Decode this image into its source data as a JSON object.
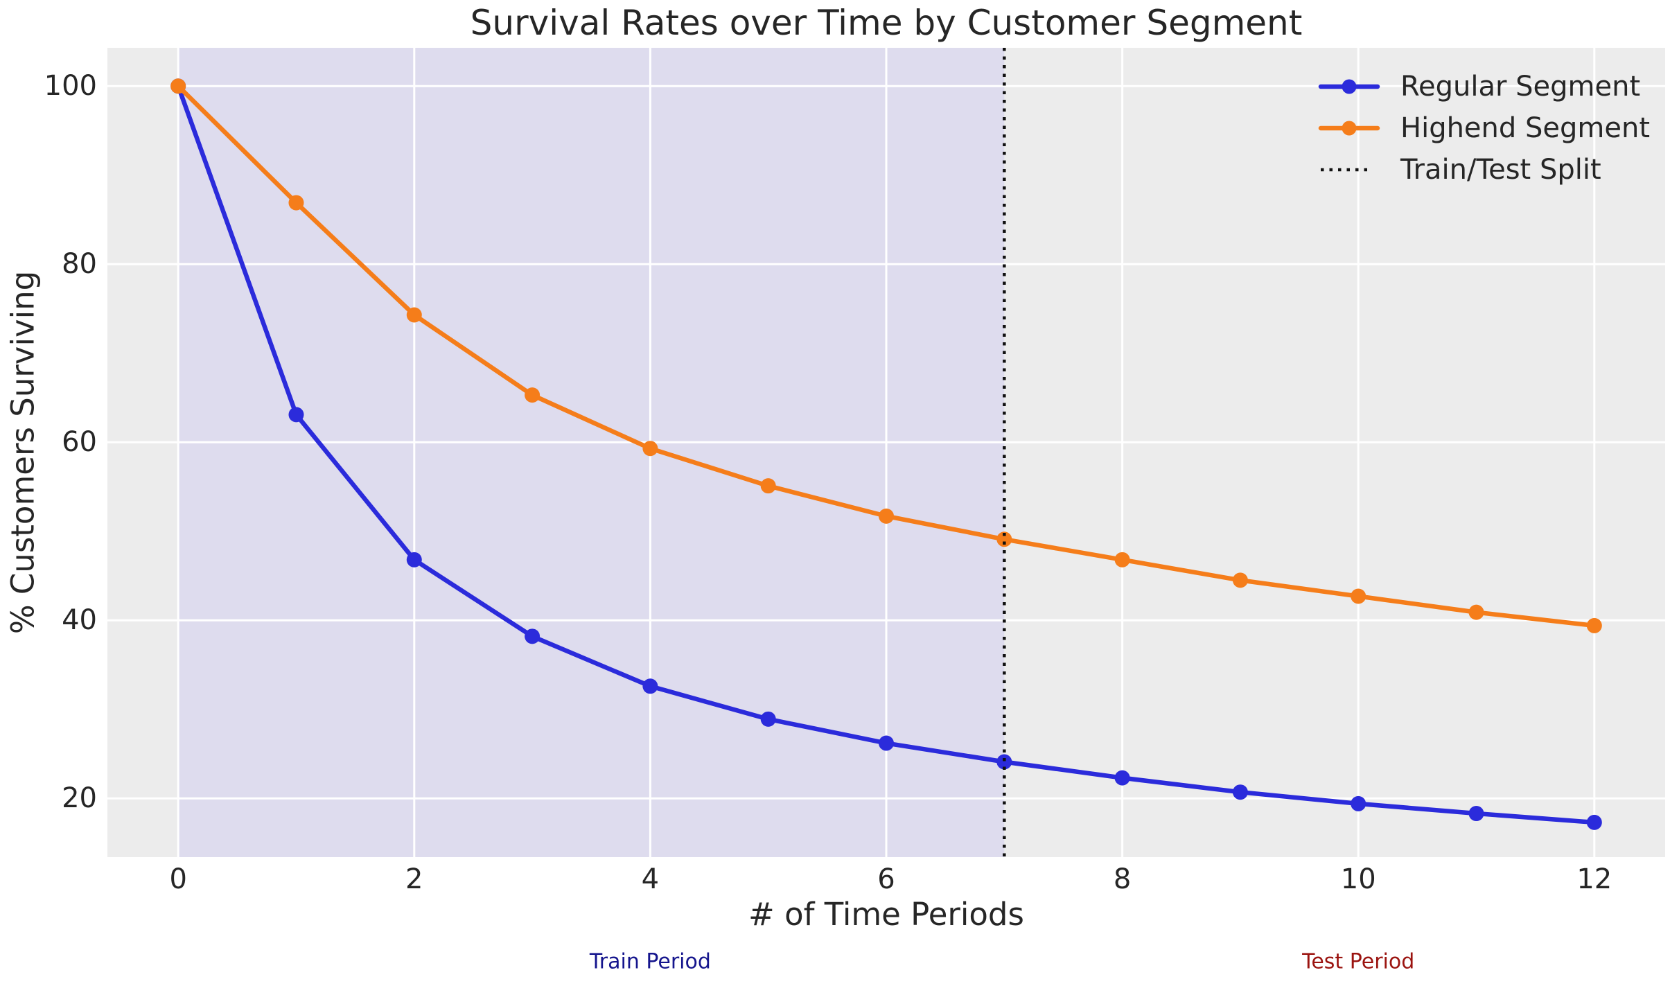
{
  "chart_data": {
    "type": "line",
    "title": "Survival Rates over Time by Customer Segment",
    "xlabel": "# of Time Periods",
    "ylabel": "% Customers Surviving",
    "x": [
      0,
      1,
      2,
      3,
      4,
      5,
      6,
      7,
      8,
      9,
      10,
      11,
      12
    ],
    "series": [
      {
        "name": "Regular Segment",
        "color": "#2b2bdb",
        "values": [
          100,
          63.1,
          46.8,
          38.2,
          32.6,
          28.9,
          26.2,
          24.1,
          22.3,
          20.7,
          19.4,
          18.3,
          17.3
        ]
      },
      {
        "name": "Highend Segment",
        "color": "#f57d1a",
        "values": [
          100,
          86.9,
          74.3,
          65.3,
          59.3,
          55.1,
          51.7,
          49.1,
          46.8,
          44.5,
          42.7,
          40.9,
          39.4
        ]
      }
    ],
    "split": {
      "label": "Train/Test Split",
      "x": 7,
      "color": "#111111",
      "style": "dotted"
    },
    "train_span": {
      "from": 0,
      "to": 7,
      "color": "#dedcee"
    },
    "xlim": [
      -0.6,
      12.6
    ],
    "ylim": [
      13.4,
      104.3
    ],
    "xticks": [
      0,
      2,
      4,
      6,
      8,
      10,
      12
    ],
    "yticks": [
      20,
      40,
      60,
      80,
      100
    ],
    "grid": true,
    "gridline_color": "#ffffff",
    "background": "#ececec",
    "legend_position": "upper right"
  },
  "legend": {
    "entries": [
      {
        "label": "Regular Segment",
        "color": "#2b2bdb",
        "style": "line-marker"
      },
      {
        "label": "Highend Segment",
        "color": "#f57d1a",
        "style": "line-marker"
      },
      {
        "label": "Train/Test Split",
        "color": "#111111",
        "style": "dotted"
      }
    ]
  },
  "annotations": {
    "train": {
      "text": "Train Period",
      "color": "#15158d",
      "x": 4
    },
    "test": {
      "text": "Test Period",
      "color": "#9b1410",
      "x": 10
    }
  }
}
